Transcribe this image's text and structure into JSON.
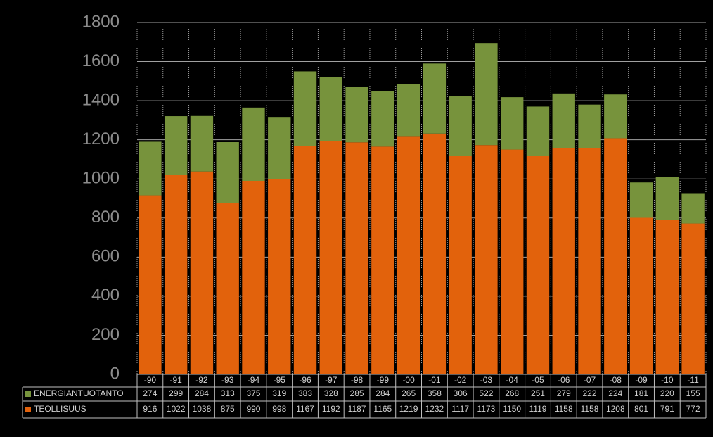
{
  "chart_data": {
    "type": "stacked-bar",
    "categories": [
      "-90",
      "-91",
      "-92",
      "-93",
      "-94",
      "-95",
      "-96",
      "-97",
      "-98",
      "-99",
      "-00",
      "-01",
      "-02",
      "-03",
      "-04",
      "-05",
      "-06",
      "-07",
      "-08",
      "-09",
      "-10",
      "-11"
    ],
    "series": [
      {
        "name": "TEOLLISUUS",
        "color": "#e2620c",
        "values": [
          916,
          1022,
          1038,
          875,
          990,
          998,
          1167,
          1192,
          1187,
          1165,
          1219,
          1232,
          1117,
          1173,
          1150,
          1119,
          1158,
          1158,
          1208,
          801,
          791,
          772
        ]
      },
      {
        "name": "ENERGIANTUOTANTO",
        "color": "#77933c",
        "values": [
          274,
          299,
          284,
          313,
          375,
          319,
          383,
          328,
          285,
          284,
          265,
          358,
          306,
          522,
          268,
          251,
          279,
          222,
          224,
          181,
          220,
          155
        ]
      }
    ],
    "ylim": [
      0,
      1800
    ],
    "yticks": [
      0,
      200,
      400,
      600,
      800,
      1000,
      1200,
      1400,
      1600,
      1800
    ],
    "grid": true
  }
}
